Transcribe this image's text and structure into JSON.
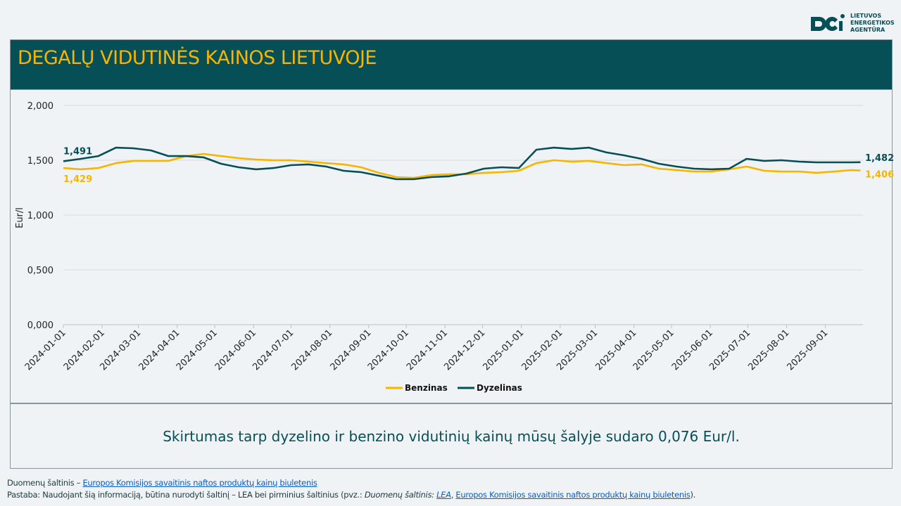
{
  "logo": {
    "line1": "LIETUVOS",
    "line2": "ENERGETIKOS",
    "line3": "AGENTŪRA"
  },
  "title": "DEGALŲ VIDUTINĖS KAINOS LIETUVOJE",
  "summary": "Skirtumas tarp dyzelino ir benzino vidutinių kainų mūsų šalyje sudaro 0,076 Eur/l.",
  "footer": {
    "source_label": "Duomenų šaltinis – ",
    "source_link": "Europos Komisijos savaitinis naftos produktų kainų biuletenis",
    "note_label": "Pastaba: Naudojant šią informaciją, būtina nurodyti šaltinį – LEA bei pirminius šaltinius (pvz.: ",
    "note_italic": "Duomenų šaltinis: ",
    "note_lea": "LEA",
    "note_sep": ", ",
    "note_link": "Europos Komisijos savaitinis naftos produktų kainų biuletenis",
    "note_end": ")."
  },
  "colors": {
    "benzinas": "#f7b500",
    "dyzelinas": "#074f57"
  },
  "chart_data": {
    "type": "line",
    "title": "DEGALŲ VIDUTINĖS KAINOS LIETUVOJE",
    "xlabel": "",
    "ylabel": "Eur/l",
    "xlim": [
      "2024-01-01",
      "2025-10-01"
    ],
    "ylim": [
      0,
      2
    ],
    "yticks": [
      "0,000",
      "0,500",
      "1,000",
      "1,500",
      "2,000"
    ],
    "ytick_values": [
      0,
      0.5,
      1,
      1.5,
      2
    ],
    "xticks": [
      "2024-01-01",
      "2024-02-01",
      "2024-03-01",
      "2024-04-01",
      "2024-05-01",
      "2024-06-01",
      "2024-07-01",
      "2024-08-01",
      "2024-09-01",
      "2024-10-01",
      "2024-11-01",
      "2024-12-01",
      "2025-01-01",
      "2025-02-01",
      "2025-03-01",
      "2025-04-01",
      "2025-05-01",
      "2025-06-01",
      "2025-07-01",
      "2025-08-01",
      "2025-09-01"
    ],
    "grid": true,
    "legend": "bottom-center",
    "x": [
      "2024-01-01",
      "2024-01-15",
      "2024-01-29",
      "2024-02-12",
      "2024-02-26",
      "2024-03-11",
      "2024-03-25",
      "2024-04-08",
      "2024-04-22",
      "2024-05-06",
      "2024-05-20",
      "2024-06-03",
      "2024-06-17",
      "2024-07-01",
      "2024-07-15",
      "2024-07-29",
      "2024-08-12",
      "2024-08-26",
      "2024-09-09",
      "2024-09-23",
      "2024-10-07",
      "2024-10-21",
      "2024-11-04",
      "2024-11-18",
      "2024-12-02",
      "2024-12-16",
      "2024-12-30",
      "2025-01-13",
      "2025-01-27",
      "2025-02-10",
      "2025-02-24",
      "2025-03-10",
      "2025-03-24",
      "2025-04-07",
      "2025-04-21",
      "2025-05-05",
      "2025-05-19",
      "2025-06-02",
      "2025-06-16",
      "2025-06-30",
      "2025-07-14",
      "2025-07-28",
      "2025-08-11",
      "2025-08-25",
      "2025-09-08",
      "2025-09-22",
      "2025-09-29"
    ],
    "series": [
      {
        "name": "Benzinas",
        "color": "#f7b500",
        "first_label": "1,429",
        "last_label": "1,406",
        "values": [
          1.429,
          1.417,
          1.429,
          1.474,
          1.494,
          1.494,
          1.494,
          1.538,
          1.558,
          1.538,
          1.519,
          1.506,
          1.5,
          1.5,
          1.487,
          1.474,
          1.462,
          1.436,
          1.385,
          1.346,
          1.34,
          1.365,
          1.372,
          1.372,
          1.385,
          1.391,
          1.404,
          1.474,
          1.5,
          1.487,
          1.494,
          1.474,
          1.455,
          1.462,
          1.423,
          1.41,
          1.397,
          1.397,
          1.417,
          1.442,
          1.404,
          1.397,
          1.397,
          1.385,
          1.397,
          1.41,
          1.406
        ]
      },
      {
        "name": "Dyzelinas",
        "color": "#074f57",
        "first_label": "1,491",
        "last_label": "1,482",
        "values": [
          1.491,
          1.513,
          1.538,
          1.615,
          1.609,
          1.59,
          1.538,
          1.538,
          1.526,
          1.468,
          1.436,
          1.417,
          1.429,
          1.455,
          1.462,
          1.442,
          1.404,
          1.391,
          1.359,
          1.327,
          1.327,
          1.346,
          1.353,
          1.378,
          1.423,
          1.436,
          1.429,
          1.596,
          1.615,
          1.603,
          1.615,
          1.571,
          1.545,
          1.513,
          1.468,
          1.442,
          1.423,
          1.417,
          1.423,
          1.513,
          1.494,
          1.5,
          1.487,
          1.481,
          1.481,
          1.481,
          1.482
        ]
      }
    ]
  }
}
